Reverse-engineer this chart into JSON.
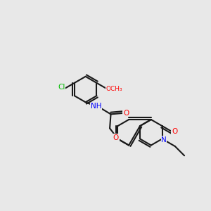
{
  "background_color": "#e8e8e8",
  "bond_color": "#1a1a1a",
  "atom_colors": {
    "N": "#0000ff",
    "O": "#ff0000",
    "Cl": "#00bb00",
    "H": "#008888",
    "C": "#1a1a1a"
  },
  "figsize": [
    3.0,
    3.0
  ],
  "dpi": 100
}
